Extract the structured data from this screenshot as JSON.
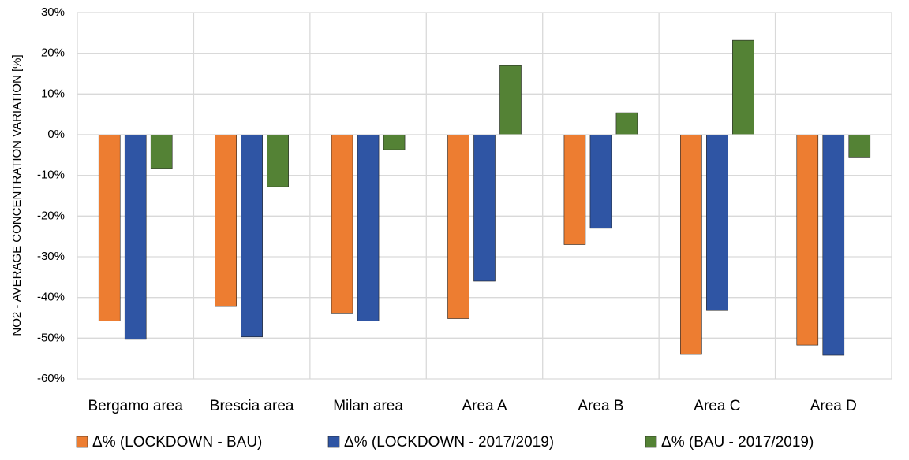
{
  "chart_data": {
    "type": "bar",
    "y_label": "NO2 - AVERAGE CONCENTRATION VARIATION [%]",
    "categories": [
      "Bergamo area",
      "Brescia area",
      "Milan area",
      "Area A",
      "Area B",
      "Area C",
      "Area D"
    ],
    "series": [
      {
        "name": "Δ% (LOCKDOWN - BAU)",
        "color": "#ed7d31",
        "values": [
          -45.8,
          -42.2,
          -44,
          -45.2,
          -27,
          -54,
          -51.7
        ]
      },
      {
        "name": "Δ% (LOCKDOWN - 2017/2019)",
        "color": "#2f55a4",
        "values": [
          -50.3,
          -49.7,
          -45.8,
          -36,
          -23,
          -43.2,
          -54.2
        ]
      },
      {
        "name": "Δ% (BAU - 2017/2019)",
        "color": "#548235",
        "values": [
          -8.3,
          -12.8,
          -3.7,
          17,
          5.4,
          23.2,
          -5.5
        ]
      }
    ],
    "ylim": [
      -60,
      30
    ],
    "yticks": [
      {
        "value": -60,
        "label": "-60%"
      },
      {
        "value": -50,
        "label": "-50%"
      },
      {
        "value": -40,
        "label": "-40%"
      },
      {
        "value": -30,
        "label": "-30%"
      },
      {
        "value": -20,
        "label": "-20%"
      },
      {
        "value": -10,
        "label": "-10%"
      },
      {
        "value": 0,
        "label": "0%"
      },
      {
        "value": 10,
        "label": "10%"
      },
      {
        "value": 20,
        "label": "20%"
      },
      {
        "value": 30,
        "label": "30%"
      }
    ],
    "grid": true,
    "legend": "bottom"
  }
}
